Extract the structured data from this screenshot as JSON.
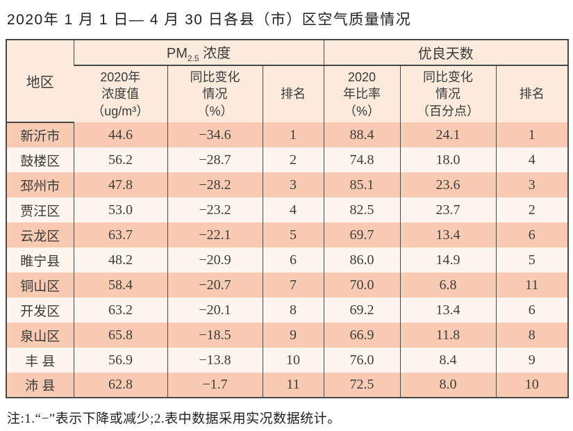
{
  "title": "2020年 1 月 1 日— 4 月 30 日各县（市）区空气质量情况",
  "table": {
    "region_header": "地区",
    "pm_group": {
      "prefix": "PM",
      "sub": "2.5",
      "suffix": " 浓度"
    },
    "good_group": "优良天数",
    "sub_headers": {
      "pm_value": "2020年\n浓度值\n（ug/m³）",
      "pm_change": "同比变化\n情况\n（%）",
      "pm_rank": "排名",
      "good_rate": "2020\n年比率\n（%）",
      "good_change": "同比变化\n情况\n（百分点）",
      "good_rank": "排名"
    },
    "rows": [
      {
        "region": "新沂市",
        "pm_value": "44.6",
        "pm_change": "−34.6",
        "pm_rank": "1",
        "good_rate": "88.4",
        "good_change": "24.1",
        "good_rank": "1"
      },
      {
        "region": "鼓楼区",
        "pm_value": "56.2",
        "pm_change": "−28.7",
        "pm_rank": "2",
        "good_rate": "74.8",
        "good_change": "18.0",
        "good_rank": "4"
      },
      {
        "region": "邳州市",
        "pm_value": "47.8",
        "pm_change": "−28.2",
        "pm_rank": "3",
        "good_rate": "85.1",
        "good_change": "23.6",
        "good_rank": "3"
      },
      {
        "region": "贾汪区",
        "pm_value": "53.0",
        "pm_change": "−23.2",
        "pm_rank": "4",
        "good_rate": "82.5",
        "good_change": "23.7",
        "good_rank": "2"
      },
      {
        "region": "云龙区",
        "pm_value": "63.7",
        "pm_change": "−22.1",
        "pm_rank": "5",
        "good_rate": "69.7",
        "good_change": "13.4",
        "good_rank": "6"
      },
      {
        "region": "睢宁县",
        "pm_value": "48.2",
        "pm_change": "−20.9",
        "pm_rank": "6",
        "good_rate": "86.0",
        "good_change": "14.9",
        "good_rank": "5"
      },
      {
        "region": "铜山区",
        "pm_value": "58.4",
        "pm_change": "−20.7",
        "pm_rank": "7",
        "good_rate": "70.0",
        "good_change": "6.8",
        "good_rank": "11"
      },
      {
        "region": "开发区",
        "pm_value": "63.2",
        "pm_change": "−20.1",
        "pm_rank": "8",
        "good_rate": "69.2",
        "good_change": "13.4",
        "good_rank": "6"
      },
      {
        "region": "泉山区",
        "pm_value": "65.8",
        "pm_change": "−18.5",
        "pm_rank": "9",
        "good_rate": "66.9",
        "good_change": "11.8",
        "good_rank": "8"
      },
      {
        "region": "丰 县",
        "pm_value": "56.9",
        "pm_change": "−13.8",
        "pm_rank": "10",
        "good_rate": "76.0",
        "good_change": "8.4",
        "good_rank": "9"
      },
      {
        "region": "沛 县",
        "pm_value": "62.8",
        "pm_change": "−1.7",
        "pm_rank": "11",
        "good_rate": "72.5",
        "good_change": "8.0",
        "good_rank": "10"
      }
    ]
  },
  "note": "注:1.“−”表示下降或减少;2.表中数据采用实况数据统计。",
  "colors": {
    "header_bg": "#fcebdd",
    "odd_row_bg": "#f8cbb2",
    "even_row_bg": "#fdf5ee",
    "border": "#474747"
  }
}
